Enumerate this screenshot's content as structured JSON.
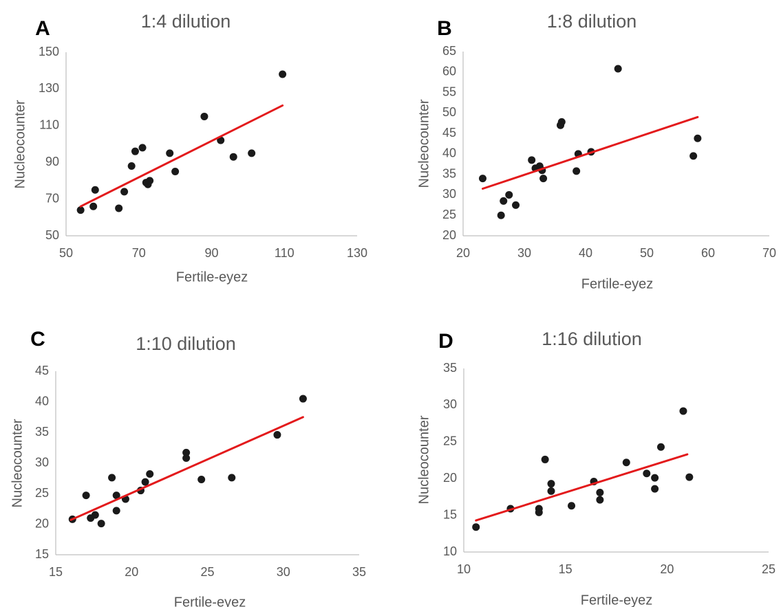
{
  "chart_data": [
    {
      "type": "scatter",
      "panel_label": "A",
      "title": "1:4 dilution",
      "xlabel": "Fertile-eyez",
      "ylabel": "Nucleocounter",
      "xlim": [
        50,
        130
      ],
      "ylim": [
        50,
        150
      ],
      "xticks": [
        50,
        70,
        90,
        110,
        130
      ],
      "yticks": [
        50,
        70,
        90,
        110,
        130,
        150
      ],
      "grid": false,
      "point_color": "#1a1a1a",
      "trendline_color": "#e31a1c",
      "trendline": {
        "x": [
          54,
          109.5
        ],
        "y": [
          66,
          121
        ]
      },
      "points": [
        {
          "x": 54,
          "y": 64
        },
        {
          "x": 57.5,
          "y": 66
        },
        {
          "x": 58,
          "y": 75
        },
        {
          "x": 64.5,
          "y": 65
        },
        {
          "x": 66,
          "y": 74
        },
        {
          "x": 68,
          "y": 88
        },
        {
          "x": 69,
          "y": 96
        },
        {
          "x": 71,
          "y": 98
        },
        {
          "x": 72,
          "y": 79
        },
        {
          "x": 72.5,
          "y": 78
        },
        {
          "x": 73,
          "y": 80
        },
        {
          "x": 78.5,
          "y": 95
        },
        {
          "x": 80,
          "y": 85
        },
        {
          "x": 88,
          "y": 115
        },
        {
          "x": 92.5,
          "y": 102
        },
        {
          "x": 96,
          "y": 93
        },
        {
          "x": 101,
          "y": 95
        },
        {
          "x": 109.5,
          "y": 138
        }
      ]
    },
    {
      "type": "scatter",
      "panel_label": "B",
      "title": "1:8 dilution",
      "xlabel": "Fertile-eyez",
      "ylabel": "Nucleocounter",
      "xlim": [
        20,
        70
      ],
      "ylim": [
        20,
        65
      ],
      "xticks": [
        20,
        30,
        40,
        50,
        60,
        70
      ],
      "yticks": [
        20,
        25,
        30,
        35,
        40,
        45,
        50,
        55,
        60,
        65
      ],
      "grid": false,
      "point_color": "#1a1a1a",
      "trendline_color": "#e31a1c",
      "trendline": {
        "x": [
          23.2,
          58.3
        ],
        "y": [
          31.5,
          49
        ]
      },
      "points": [
        {
          "x": 23.2,
          "y": 34
        },
        {
          "x": 26.2,
          "y": 25
        },
        {
          "x": 26.6,
          "y": 28.5
        },
        {
          "x": 27.5,
          "y": 30
        },
        {
          "x": 28.6,
          "y": 27.5
        },
        {
          "x": 31.2,
          "y": 38.5
        },
        {
          "x": 31.8,
          "y": 36.5
        },
        {
          "x": 32.5,
          "y": 37
        },
        {
          "x": 32.9,
          "y": 36
        },
        {
          "x": 33.1,
          "y": 34
        },
        {
          "x": 35.9,
          "y": 47
        },
        {
          "x": 36.1,
          "y": 47.8
        },
        {
          "x": 38.5,
          "y": 35.8
        },
        {
          "x": 38.8,
          "y": 40
        },
        {
          "x": 40.9,
          "y": 40.5
        },
        {
          "x": 45.3,
          "y": 60.8
        },
        {
          "x": 57.6,
          "y": 39.5
        },
        {
          "x": 58.3,
          "y": 43.8
        }
      ]
    },
    {
      "type": "scatter",
      "panel_label": "C",
      "title": "1:10 dilution",
      "xlabel": "Fertile-eyez",
      "ylabel": "Nucleocounter",
      "xlim": [
        15,
        35
      ],
      "ylim": [
        15,
        45
      ],
      "xticks": [
        15,
        20,
        25,
        30,
        35
      ],
      "yticks": [
        15,
        20,
        25,
        30,
        35,
        40,
        45
      ],
      "grid": false,
      "point_color": "#1a1a1a",
      "trendline_color": "#e31a1c",
      "trendline": {
        "x": [
          16,
          31.3
        ],
        "y": [
          20.7,
          37.5
        ]
      },
      "points": [
        {
          "x": 16.1,
          "y": 20.8
        },
        {
          "x": 17,
          "y": 24.7
        },
        {
          "x": 17.3,
          "y": 21
        },
        {
          "x": 17.6,
          "y": 21.5
        },
        {
          "x": 18,
          "y": 20.1
        },
        {
          "x": 18.7,
          "y": 27.6
        },
        {
          "x": 19,
          "y": 24.7
        },
        {
          "x": 19,
          "y": 22.2
        },
        {
          "x": 19.6,
          "y": 24.1
        },
        {
          "x": 20.6,
          "y": 25.5
        },
        {
          "x": 20.9,
          "y": 26.9
        },
        {
          "x": 21.2,
          "y": 28.2
        },
        {
          "x": 23.6,
          "y": 31.7
        },
        {
          "x": 23.6,
          "y": 30.8
        },
        {
          "x": 24.6,
          "y": 27.3
        },
        {
          "x": 26.6,
          "y": 27.6
        },
        {
          "x": 29.6,
          "y": 34.6
        },
        {
          "x": 31.3,
          "y": 40.5
        }
      ]
    },
    {
      "type": "scatter",
      "panel_label": "D",
      "title": "1:16 dilution",
      "xlabel": "Fertile-eyez",
      "ylabel": "Nucleocounter",
      "xlim": [
        10,
        25
      ],
      "ylim": [
        10,
        35
      ],
      "xticks": [
        10,
        15,
        20,
        25
      ],
      "yticks": [
        10,
        15,
        20,
        25,
        30,
        35
      ],
      "grid": false,
      "point_color": "#1a1a1a",
      "trendline_color": "#e31a1c",
      "trendline": {
        "x": [
          10.6,
          21
        ],
        "y": [
          14.3,
          23.3
        ]
      },
      "points": [
        {
          "x": 10.6,
          "y": 13.4
        },
        {
          "x": 12.3,
          "y": 15.9
        },
        {
          "x": 13.7,
          "y": 15.4
        },
        {
          "x": 13.7,
          "y": 15.9
        },
        {
          "x": 14,
          "y": 22.6
        },
        {
          "x": 14.3,
          "y": 19.3
        },
        {
          "x": 14.3,
          "y": 18.3
        },
        {
          "x": 15.3,
          "y": 16.3
        },
        {
          "x": 16.4,
          "y": 19.6
        },
        {
          "x": 16.7,
          "y": 18.1
        },
        {
          "x": 16.7,
          "y": 17.1
        },
        {
          "x": 18,
          "y": 22.2
        },
        {
          "x": 19,
          "y": 20.7
        },
        {
          "x": 19.4,
          "y": 20.1
        },
        {
          "x": 19.4,
          "y": 18.6
        },
        {
          "x": 19.7,
          "y": 24.3
        },
        {
          "x": 20.8,
          "y": 29.2
        },
        {
          "x": 21.1,
          "y": 20.2
        }
      ]
    }
  ]
}
